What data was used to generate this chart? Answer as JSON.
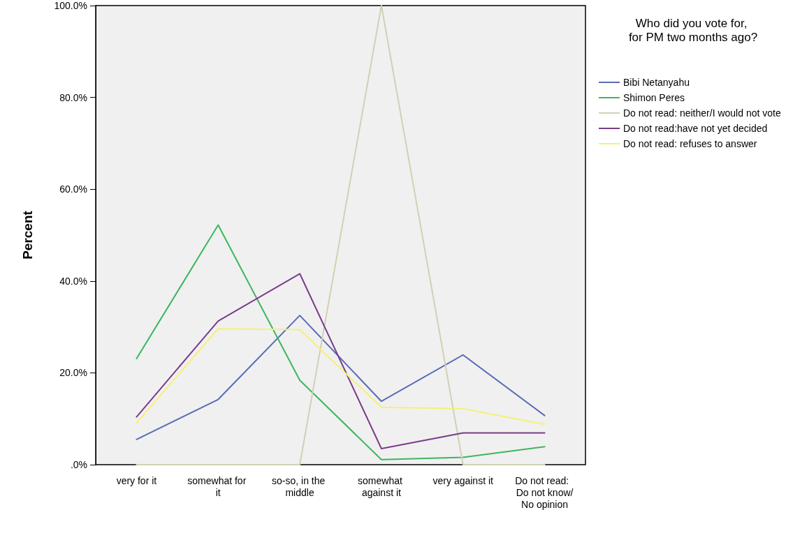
{
  "chart_data": {
    "type": "line",
    "ylabel": "Percent",
    "legend_title": "Who did you vote for, for PM two months ago?",
    "categories": [
      "very for it",
      "somewhat for it",
      "so-so, in the middle",
      "somewhat against it",
      "very against it",
      "Do not read:  Do not know/No opinion"
    ],
    "series": [
      {
        "name": "Bibi Netanyahu",
        "color": "#5a6bb5",
        "values": [
          5.5,
          14.2,
          32.5,
          13.8,
          23.9,
          10.7
        ]
      },
      {
        "name": "Shimon Peres",
        "color": "#3cb660",
        "values": [
          23.1,
          52.2,
          18.4,
          1.1,
          1.6,
          3.9
        ]
      },
      {
        "name": "Do not read: neither/I would not vote",
        "color": "#d2d0b4",
        "values": [
          0,
          0,
          0,
          100,
          0,
          0
        ]
      },
      {
        "name": "Do not read:have not yet decided",
        "color": "#7a3c8a",
        "values": [
          10.4,
          31.3,
          41.6,
          3.5,
          6.9,
          6.9
        ]
      },
      {
        "name": "Do not read: refuses to answer",
        "color": "#f5f07a",
        "values": [
          9.1,
          29.6,
          29.4,
          12.5,
          12.2,
          8.8
        ]
      }
    ],
    "ylim": [
      0,
      100
    ],
    "yticks": [
      {
        "value": 0,
        "label": ".0%"
      },
      {
        "value": 20,
        "label": "20.0%"
      },
      {
        "value": 40,
        "label": "40.0%"
      },
      {
        "value": 60,
        "label": "60.0%"
      },
      {
        "value": 80,
        "label": "80.0%"
      },
      {
        "value": 100,
        "label": "100.0%"
      }
    ],
    "grid": false,
    "legend": "top right",
    "marker": "none",
    "line_style": "solid"
  }
}
